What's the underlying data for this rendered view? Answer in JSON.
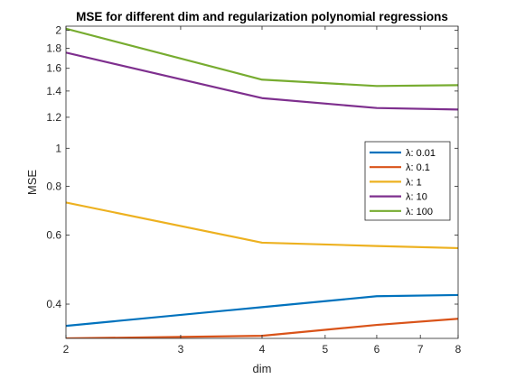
{
  "chart_data": {
    "type": "line",
    "title": "MSE for different dim and regularization polynomial regressions",
    "xlabel": "dim",
    "ylabel": "MSE",
    "xscale": "log",
    "yscale": "log",
    "xlim": [
      2,
      8
    ],
    "ylim": [
      0.327,
      2.05
    ],
    "xticks": [
      2,
      3,
      4,
      5,
      6,
      7,
      8
    ],
    "xtick_labels": [
      "2",
      "3",
      "4",
      "5",
      "6",
      "7",
      "8"
    ],
    "yticks": [
      0.4,
      0.6,
      0.8,
      1,
      1.2,
      1.4,
      1.6,
      1.8,
      2
    ],
    "ytick_labels": [
      "0.4",
      "0.6",
      "0.8",
      "1",
      "1.2",
      "1.4",
      "1.6",
      "1.8",
      "2"
    ],
    "grid": false,
    "legend_position": "right",
    "x": [
      2,
      4,
      6,
      8
    ],
    "series": [
      {
        "name": "λ: 0.01",
        "values": [
          0.352,
          0.393,
          0.419,
          0.422
        ],
        "color": "#0072BD"
      },
      {
        "name": "λ: 0.1",
        "values": [
          0.327,
          0.332,
          0.354,
          0.367
        ],
        "color": "#D95319"
      },
      {
        "name": "λ: 1",
        "values": [
          0.727,
          0.574,
          0.563,
          0.556
        ],
        "color": "#EDB120"
      },
      {
        "name": "λ: 10",
        "values": [
          1.755,
          1.343,
          1.267,
          1.256
        ],
        "color": "#7E2F8E"
      },
      {
        "name": "λ: 100",
        "values": [
          2.02,
          1.497,
          1.442,
          1.449
        ],
        "color": "#77AC30"
      }
    ]
  }
}
